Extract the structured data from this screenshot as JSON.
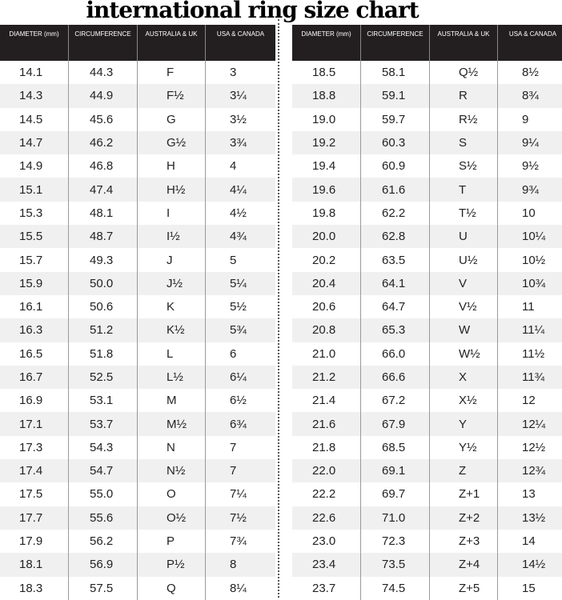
{
  "title": "international ring size chart",
  "headers": [
    "DIAMETER (mm)",
    "CIRCUMFERENCE",
    "AUSTRALIA & UK",
    "USA & CANADA"
  ],
  "left_rows": [
    [
      "14.1",
      "44.3",
      "F",
      "3"
    ],
    [
      "14.3",
      "44.9",
      "F½",
      "3¼"
    ],
    [
      "14.5",
      "45.6",
      "G",
      "3½"
    ],
    [
      "14.7",
      "46.2",
      "G½",
      "3¾"
    ],
    [
      "14.9",
      "46.8",
      "H",
      "4"
    ],
    [
      "15.1",
      "47.4",
      "H½",
      "4¼"
    ],
    [
      "15.3",
      "48.1",
      "I",
      "4½"
    ],
    [
      "15.5",
      "48.7",
      "I½",
      "4¾"
    ],
    [
      "15.7",
      "49.3",
      "J",
      "5"
    ],
    [
      "15.9",
      "50.0",
      "J½",
      "5¼"
    ],
    [
      "16.1",
      "50.6",
      "K",
      "5½"
    ],
    [
      "16.3",
      "51.2",
      "K½",
      "5¾"
    ],
    [
      "16.5",
      "51.8",
      "L",
      "6"
    ],
    [
      "16.7",
      "52.5",
      "L½",
      "6¼"
    ],
    [
      "16.9",
      "53.1",
      "M",
      "6½"
    ],
    [
      "17.1",
      "53.7",
      "M½",
      "6¾"
    ],
    [
      "17.3",
      "54.3",
      "N",
      "7"
    ],
    [
      "17.4",
      "54.7",
      "N½",
      "7"
    ],
    [
      "17.5",
      "55.0",
      "O",
      "7¼"
    ],
    [
      "17.7",
      "55.6",
      "O½",
      "7½"
    ],
    [
      "17.9",
      "56.2",
      "P",
      "7¾"
    ],
    [
      "18.1",
      "56.9",
      "P½",
      "8"
    ],
    [
      "18.3",
      "57.5",
      "Q",
      "8¼"
    ]
  ],
  "right_rows": [
    [
      "18.5",
      "58.1",
      "Q½",
      "8½"
    ],
    [
      "18.8",
      "59.1",
      "R",
      "8¾"
    ],
    [
      "19.0",
      "59.7",
      "R½",
      "9"
    ],
    [
      "19.2",
      "60.3",
      "S",
      "9¼"
    ],
    [
      "19.4",
      "60.9",
      "S½",
      "9½"
    ],
    [
      "19.6",
      "61.6",
      "T",
      "9¾"
    ],
    [
      "19.8",
      "62.2",
      "T½",
      "10"
    ],
    [
      "20.0",
      "62.8",
      "U",
      "10¼"
    ],
    [
      "20.2",
      "63.5",
      "U½",
      "10½"
    ],
    [
      "20.4",
      "64.1",
      "V",
      "10¾"
    ],
    [
      "20.6",
      "64.7",
      "V½",
      "11"
    ],
    [
      "20.8",
      "65.3",
      "W",
      "11¼"
    ],
    [
      "21.0",
      "66.0",
      "W½",
      "11½"
    ],
    [
      "21.2",
      "66.6",
      "X",
      "11¾"
    ],
    [
      "21.4",
      "67.2",
      "X½",
      "12"
    ],
    [
      "21.6",
      "67.9",
      "Y",
      "12¼"
    ],
    [
      "21.8",
      "68.5",
      "Y½",
      "12½"
    ],
    [
      "22.0",
      "69.1",
      "Z",
      "12¾"
    ],
    [
      "22.2",
      "69.7",
      "Z+1",
      "13"
    ],
    [
      "22.6",
      "71.0",
      "Z+2",
      "13½"
    ],
    [
      "23.0",
      "72.3",
      "Z+3",
      "14"
    ],
    [
      "23.4",
      "73.5",
      "Z+4",
      "14½"
    ],
    [
      "23.7",
      "74.5",
      "Z+5",
      "15"
    ]
  ],
  "colors": {
    "header_bg": "#231f20",
    "alt_row": "#f0f0f0"
  }
}
